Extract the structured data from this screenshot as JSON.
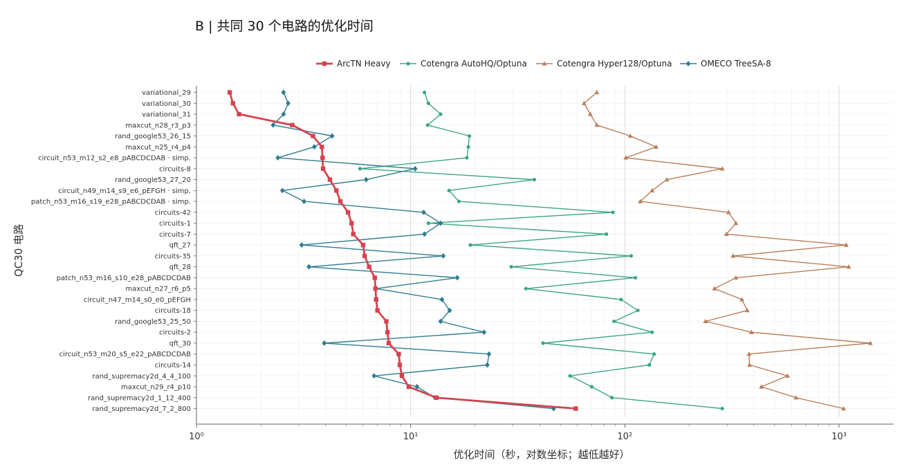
{
  "chart_data": {
    "type": "line",
    "title": "B | 共同 30 个电路的优化时间",
    "xlabel": "优化时间（秒，对数坐标；越低越好）",
    "ylabel": "QC30 电路",
    "x_scale": "log",
    "xlim": [
      1,
      1800
    ],
    "x_ticks": [
      {
        "value": 1,
        "label": "10⁰"
      },
      {
        "value": 10,
        "label": "10¹"
      },
      {
        "value": 100,
        "label": "10²"
      },
      {
        "value": 1000,
        "label": "10³"
      }
    ],
    "grid": true,
    "legend_position": "top-right",
    "categories": [
      "variational_29",
      "variational_30",
      "variational_31",
      "maxcut_n28_r3_p3",
      "rand_google53_26_15",
      "maxcut_n25_r4_p4",
      "circuit_n53_m12_s2_e8_pABCDCDAB · simp.",
      "circuits-8",
      "rand_google53_27_20",
      "circuit_n49_m14_s9_e6_pEFGH · simp.",
      "patch_n53_m16_s19_e28_pABCDCDAB · simp.",
      "circuits-42",
      "circuits-1",
      "circuits-7",
      "qft_27",
      "circuits-35",
      "qft_28",
      "patch_n53_m16_s10_e28_pABCDCDAB",
      "maxcut_n27_r6_p5",
      "circuit_n47_m14_s0_e0_pEFGH",
      "circuits-18",
      "rand_google53_25_50",
      "circuits-2",
      "qft_30",
      "circuit_n53_m20_s5_e22_pABCDCDAB",
      "circuits-14",
      "rand_supremacy2d_4_4_100",
      "maxcut_n29_r4_p10",
      "rand_supremacy2d_1_12_400",
      "rand_supremacy2d_7_2_800"
    ],
    "series": [
      {
        "name": "ArcTN Heavy",
        "color": "#d6434f",
        "marker": "square",
        "values": [
          1.43,
          1.48,
          1.58,
          2.8,
          3.5,
          3.85,
          3.88,
          3.9,
          4.2,
          4.5,
          4.7,
          5.1,
          5.3,
          5.4,
          6.0,
          6.1,
          6.4,
          6.8,
          6.85,
          6.9,
          7.0,
          7.7,
          7.8,
          7.9,
          8.8,
          8.9,
          9.1,
          9.8,
          13.2,
          59
        ]
      },
      {
        "name": "Cotengra AutoHQ/Optuna",
        "color": "#3aa683",
        "marker": "circle",
        "values": [
          11.6,
          12.1,
          13.8,
          12.0,
          18.8,
          18.6,
          18.3,
          5.8,
          37.8,
          15.1,
          16.8,
          88.0,
          12.1,
          82.0,
          19.0,
          107.0,
          29.5,
          112.0,
          34.5,
          96.0,
          115.0,
          89.0,
          134.0,
          41.5,
          137.0,
          130.0,
          55.5,
          70.0,
          87.0,
          285.0
        ]
      },
      {
        "name": "Cotengra Hyper128/Optuna",
        "color": "#b87e5c",
        "marker": "triangle",
        "values": [
          74.0,
          64.5,
          69.0,
          74.0,
          106.0,
          140.0,
          101.0,
          285.0,
          157.0,
          134.0,
          118.0,
          305.0,
          330.0,
          298.0,
          1080.0,
          320.0,
          1110.0,
          330.0,
          262.0,
          352.0,
          373.0,
          238.0,
          390.0,
          1400.0,
          380.0,
          382.0,
          575.0,
          434.0,
          630.0,
          1050.0
        ]
      },
      {
        "name": "OMECO TreeSA-8",
        "color": "#2f7c8f",
        "marker": "diamond",
        "values": [
          2.55,
          2.68,
          2.55,
          2.28,
          4.3,
          3.55,
          2.4,
          10.5,
          6.2,
          2.52,
          3.18,
          11.5,
          13.8,
          11.6,
          3.1,
          14.2,
          3.35,
          16.5,
          6.9,
          14.0,
          15.2,
          13.8,
          22.0,
          3.95,
          23.2,
          22.8,
          6.75,
          10.7,
          13.0,
          46.5
        ]
      }
    ]
  }
}
